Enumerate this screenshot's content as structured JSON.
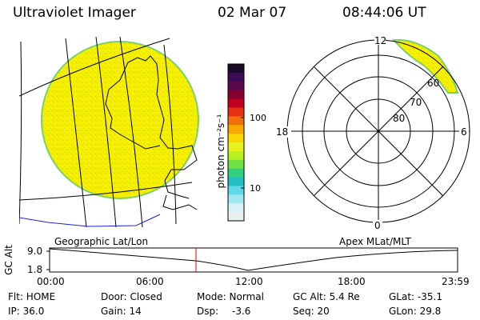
{
  "header": {
    "instrument": "Ultraviolet Imager",
    "date": "02 Mar 07",
    "time": "08:44:06 UT"
  },
  "colorbar": {
    "unit_label": "photon cm⁻²s⁻¹",
    "tick_100": "100",
    "tick_10": "10",
    "colors": [
      "#1a0a2a",
      "#3a0a55",
      "#5a0a4a",
      "#880030",
      "#c00020",
      "#e83010",
      "#f07010",
      "#f8a800",
      "#f8d800",
      "#e8f020",
      "#b8f020",
      "#70e040",
      "#30d080",
      "#20c0c0",
      "#60d8e8",
      "#a0e8f0",
      "#d8f0f8",
      "#e8f0f0"
    ]
  },
  "geo_panel": {
    "caption": "Geographic Lat/Lon",
    "disk_fill": "#f6f000",
    "disk_edge": "#7ccf6a"
  },
  "polar_panel": {
    "caption": "Apex MLat/MLT",
    "mlt_labels": {
      "top": "12",
      "left": "18",
      "right": "6",
      "bottom": "0"
    },
    "mlat_labels": [
      "60",
      "70",
      "80"
    ],
    "arc_fill": "#f6f000"
  },
  "altitude_strip": {
    "axis_label": "GC Alt",
    "y_ticks": [
      "9.0",
      "1.8"
    ],
    "x_ticks": [
      "00:00",
      "06:00",
      "12:00",
      "18:00",
      "23:59"
    ],
    "marker_color": "#e00000",
    "marker_time": "08:44"
  },
  "status": {
    "row1": {
      "flt": "Flt: HOME",
      "door": "Door: Closed",
      "mode": "Mode: Normal",
      "gcalt": "GC Alt: 5.4 Re",
      "glat": "GLat: -35.1"
    },
    "row2": {
      "ip": "IP: 36.0",
      "gain": "Gain: 14",
      "dsp_label": "Dsp:",
      "dsp_value": "-3.6",
      "seq": "Seq: 20",
      "glon": "GLon: 29.8"
    }
  }
}
